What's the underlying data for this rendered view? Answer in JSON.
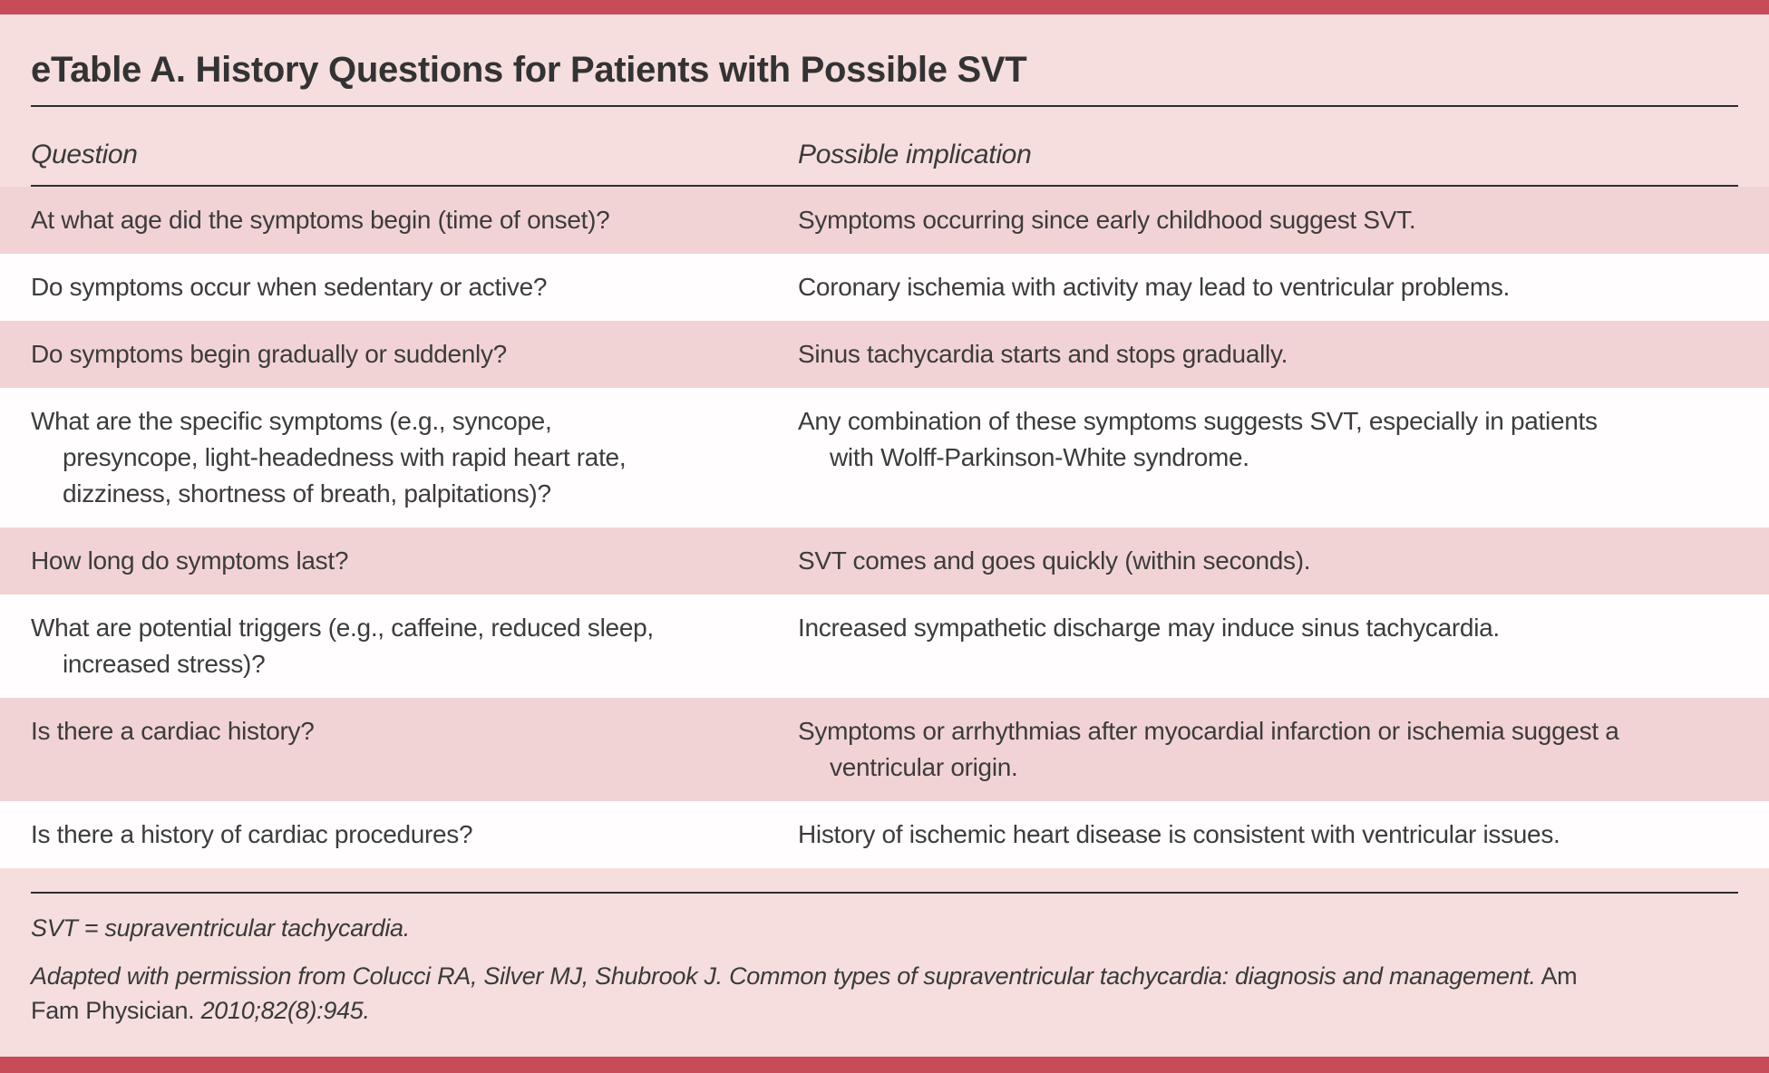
{
  "theme": {
    "accent_red": "#c74b59",
    "page_pink": "#f6dede",
    "row_pink": "#f2d3d5",
    "row_white": "#fffdfd",
    "text": "#3c3c3c",
    "rule": "#2e2e2e"
  },
  "title": "eTable A. History Questions for Patients with Possible SVT",
  "table": {
    "columns": [
      "Question",
      "Possible implication"
    ],
    "rows": [
      {
        "question": "At what age did the symptoms begin (time of onset)?",
        "implication": "Symptoms occurring since early childhood suggest SVT."
      },
      {
        "question": "Do symptoms occur when sedentary or active?",
        "implication": "Coronary ischemia with activity may lead to ventricular problems."
      },
      {
        "question": "Do symptoms begin gradually or suddenly?",
        "implication": "Sinus tachycardia starts and stops gradually."
      },
      {
        "question": "What are the specific symptoms (e.g., syncope,\npresyncope, light-headedness with rapid heart rate,\ndizziness, shortness of breath, palpitations)?",
        "implication": "Any combination of these symptoms suggests SVT, especially in patients\nwith Wolff-Parkinson-White syndrome."
      },
      {
        "question": "How long do symptoms last?",
        "implication": "SVT comes and goes quickly (within seconds)."
      },
      {
        "question": "What are potential triggers (e.g., caffeine, reduced sleep,\nincreased stress)?",
        "implication": "Increased sympathetic discharge may induce sinus tachycardia."
      },
      {
        "question": "Is there a cardiac history?",
        "implication": "Symptoms or arrhythmias after myocardial infarction or ischemia suggest a\nventricular origin."
      },
      {
        "question": "Is there a history of cardiac procedures?",
        "implication": "History of ischemic heart disease is consistent with ventricular issues."
      }
    ]
  },
  "footnotes": {
    "abbreviation": "SVT = supraventricular tachycardia.",
    "citation": {
      "part1": "Adapted with permission from Colucci RA, Silver MJ, Shubrook J. Common types of supraventricular tachycardia: diagnosis and management.",
      "part2": " Am",
      "part3": "Fam Physician. ",
      "part4": "2010;82(8):945."
    }
  }
}
